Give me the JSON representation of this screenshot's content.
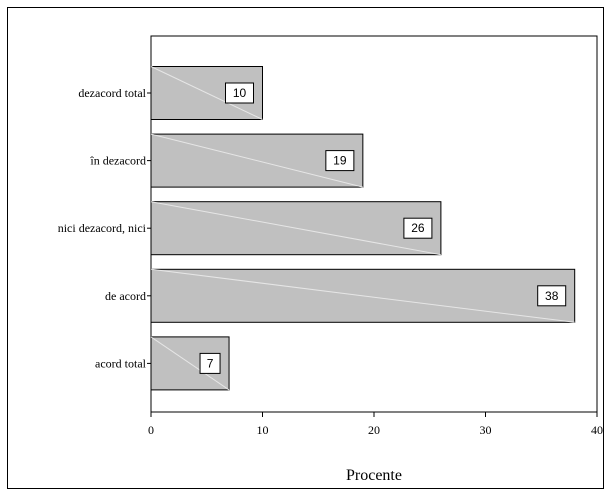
{
  "chart_data": {
    "type": "bar",
    "orientation": "horizontal",
    "categories": [
      "dezacord total",
      "în dezacord",
      "nici dezacord, nici",
      "de acord",
      "acord total"
    ],
    "values": [
      10,
      19,
      26,
      38,
      7
    ],
    "data_labels": [
      "10",
      "19",
      "26",
      "38",
      "7"
    ],
    "title": "",
    "xlabel": "Procente",
    "ylabel": "",
    "xlim": [
      0,
      40
    ],
    "x_ticks": [
      0,
      10,
      20,
      30,
      40
    ],
    "x_tick_labels": [
      "0",
      "10",
      "20",
      "30",
      "40"
    ],
    "grid": false,
    "bar_color": "#c0c0c0",
    "bar_edge_color": "#000000"
  }
}
